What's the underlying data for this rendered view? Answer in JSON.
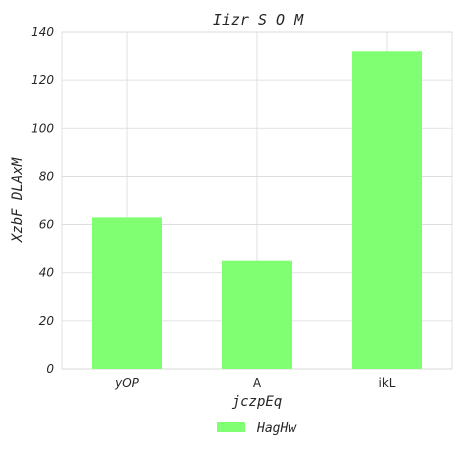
{
  "chart_data": {
    "type": "bar",
    "title": "Iizr S O  M",
    "xlabel": "jczpEq",
    "ylabel": "XzbF DLAxM",
    "categories": [
      "yOP",
      "A",
      "ikL"
    ],
    "series": [
      {
        "name": "HagHw",
        "values": [
          63,
          45,
          132
        ],
        "color": "#80ff72"
      }
    ],
    "ylim": [
      0,
      140
    ],
    "yticks": [
      0,
      20,
      40,
      60,
      80,
      100,
      120,
      140
    ],
    "grid": true,
    "legend_position": "bottom-center"
  }
}
